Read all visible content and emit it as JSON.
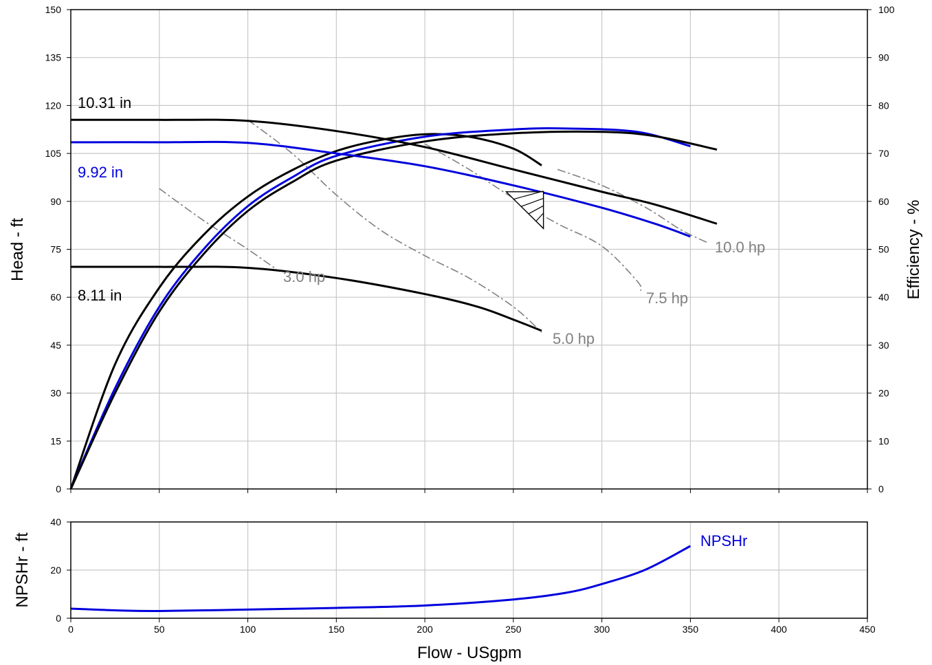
{
  "chart_data": [
    {
      "type": "line",
      "panel": "head-efficiency",
      "xlabel": "Flow - USgpm",
      "ylabel": "Head - ft",
      "y2label": "Efficiency - %",
      "xlim": [
        0,
        450
      ],
      "ylim": [
        0,
        150
      ],
      "y2lim": [
        0,
        100
      ],
      "x_ticks": [
        "0",
        "50",
        "100",
        "150",
        "200",
        "250",
        "300",
        "350",
        "400",
        "450"
      ],
      "y_ticks": [
        "0",
        "15",
        "30",
        "45",
        "60",
        "75",
        "90",
        "105",
        "120",
        "135",
        "150"
      ],
      "y2_ticks": [
        "0",
        "10",
        "20",
        "30",
        "40",
        "50",
        "60",
        "70",
        "80",
        "90",
        "100"
      ],
      "grid": true,
      "colors": {
        "black": "#000000",
        "blue": "#0000dd",
        "gray": "#808080"
      },
      "head_curves": [
        {
          "name": "10.31 in",
          "color": "#000000",
          "points": [
            [
              0,
              115.5
            ],
            [
              50,
              115.5
            ],
            [
              100,
              115.2
            ],
            [
              150,
              112
            ],
            [
              200,
              107
            ],
            [
              250,
              100
            ],
            [
              300,
              93
            ],
            [
              330,
              89
            ],
            [
              365,
              83
            ]
          ]
        },
        {
          "name": "9.92 in",
          "color": "#0000dd",
          "points": [
            [
              0,
              108.5
            ],
            [
              50,
              108.5
            ],
            [
              100,
              108.3
            ],
            [
              150,
              105
            ],
            [
              200,
              101
            ],
            [
              250,
              95
            ],
            [
              300,
              88
            ],
            [
              330,
              83
            ],
            [
              350,
              79
            ]
          ]
        },
        {
          "name": "8.11 in",
          "color": "#000000",
          "points": [
            [
              0,
              69.5
            ],
            [
              50,
              69.5
            ],
            [
              100,
              69.2
            ],
            [
              150,
              66
            ],
            [
              200,
              61
            ],
            [
              230,
              57
            ],
            [
              250,
              53
            ],
            [
              266,
              49.5
            ]
          ]
        }
      ],
      "efficiency_curves": [
        {
          "color": "#000000",
          "points": [
            [
              0,
              0
            ],
            [
              25,
              26
            ],
            [
              50,
              42
            ],
            [
              75,
              53
            ],
            [
              100,
              61
            ],
            [
              125,
              66.5
            ],
            [
              150,
              70.5
            ],
            [
              175,
              72.8
            ],
            [
              200,
              74
            ],
            [
              225,
              73.5
            ],
            [
              250,
              71
            ],
            [
              266,
              67.5
            ]
          ]
        },
        {
          "color": "#0000dd",
          "points": [
            [
              0,
              0
            ],
            [
              25,
              21
            ],
            [
              50,
              38
            ],
            [
              75,
              50
            ],
            [
              100,
              59
            ],
            [
              125,
              65
            ],
            [
              150,
              69.5
            ],
            [
              200,
              73.5
            ],
            [
              250,
              75
            ],
            [
              280,
              75.2
            ],
            [
              320,
              74.5
            ],
            [
              350,
              71.5
            ]
          ]
        },
        {
          "color": "#000000",
          "points": [
            [
              0,
              0
            ],
            [
              25,
              20
            ],
            [
              50,
              37
            ],
            [
              75,
              49
            ],
            [
              100,
              58
            ],
            [
              125,
              64
            ],
            [
              150,
              68.5
            ],
            [
              200,
              72.5
            ],
            [
              250,
              74.2
            ],
            [
              300,
              74.5
            ],
            [
              330,
              73.6
            ],
            [
              365,
              70.8
            ]
          ]
        }
      ],
      "power_curves": [
        {
          "name": "3.0 hp",
          "points": [
            [
              50,
              94
            ],
            [
              75,
              84
            ],
            [
              100,
              75
            ],
            [
              118,
              68
            ]
          ]
        },
        {
          "name": "5.0 hp",
          "points": [
            [
              100,
              115.5
            ],
            [
              125,
              105
            ],
            [
              150,
              92
            ],
            [
              175,
              81
            ],
            [
              200,
              73
            ],
            [
              225,
              66
            ],
            [
              250,
              57
            ],
            [
              266,
              49
            ]
          ]
        },
        {
          "name": "7.5 hp",
          "points": [
            [
              200,
              108
            ],
            [
              225,
              100
            ],
            [
              250,
              91
            ],
            [
              275,
              83
            ],
            [
              300,
              76
            ],
            [
              320,
              65
            ],
            [
              322,
              62
            ]
          ]
        },
        {
          "name": "10.0 hp",
          "points": [
            [
              275,
              100
            ],
            [
              300,
              95
            ],
            [
              325,
              88
            ],
            [
              345,
              81
            ],
            [
              360,
              77
            ]
          ]
        }
      ],
      "bep_marker": {
        "x": 267,
        "head_range": [
          81.5,
          93
        ],
        "flow_range": [
          246,
          267
        ]
      }
    },
    {
      "type": "line",
      "panel": "npshr",
      "ylabel": "NPSHr - ft",
      "xlim": [
        0,
        450
      ],
      "ylim": [
        0,
        40
      ],
      "y_ticks": [
        "0",
        "20",
        "40"
      ],
      "grid": true,
      "series": [
        {
          "name": "NPSHr",
          "color": "#0000dd",
          "points": [
            [
              0,
              4
            ],
            [
              25,
              3.3
            ],
            [
              50,
              3
            ],
            [
              100,
              3.6
            ],
            [
              150,
              4.3
            ],
            [
              200,
              5.3
            ],
            [
              250,
              7.8
            ],
            [
              280,
              10.6
            ],
            [
              300,
              14.2
            ],
            [
              325,
              20.3
            ],
            [
              350,
              30
            ]
          ]
        }
      ]
    }
  ]
}
